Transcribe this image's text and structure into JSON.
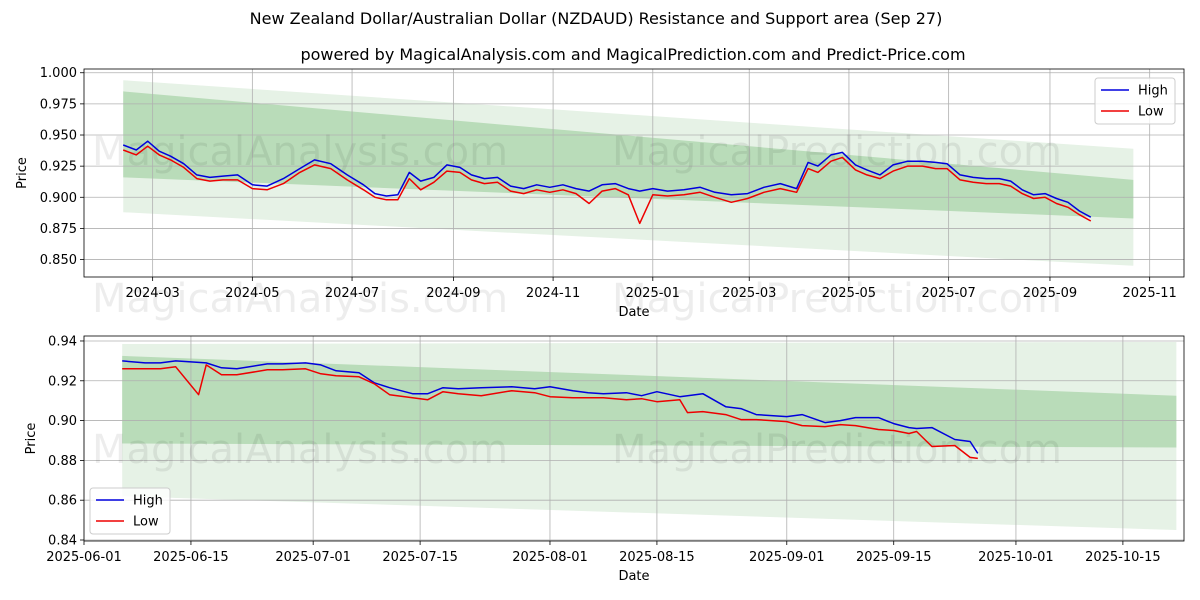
{
  "header": {
    "title": "New Zealand Dollar/Australian Dollar (NZDAUD) Resistance and Support area (Sep 27)",
    "subtitle": "powered by MagicalAnalysis.com and MagicalPrediction.com and Predict-Price.com"
  },
  "watermarks": [
    "MagicalAnalysis.com",
    "MagicalPrediction.com"
  ],
  "colors": {
    "high": "#0000dd",
    "low": "#ee0000",
    "band_outer": "#e6f2e6",
    "band_inner": "#b9dcb9",
    "grid": "#b0b0b0"
  },
  "chart_data": [
    {
      "type": "line",
      "xlabel": "Date",
      "ylabel": "Price",
      "grid": true,
      "legend": "top-right",
      "ylim": [
        0.836,
        1.003
      ],
      "xlim": [
        "2024-01-19",
        "2025-11-22"
      ],
      "x_ticks": [
        "2024-03",
        "2024-05",
        "2024-07",
        "2024-09",
        "2024-11",
        "2025-01",
        "2025-03",
        "2025-05",
        "2025-07",
        "2025-09",
        "2025-11"
      ],
      "y_ticks": [
        "0.850",
        "0.875",
        "0.900",
        "0.925",
        "0.950",
        "0.975",
        "1.000"
      ],
      "series": [
        {
          "name": "High",
          "x": [
            "2024-02-12",
            "2024-02-20",
            "2024-02-27",
            "2024-03-05",
            "2024-03-12",
            "2024-03-20",
            "2024-03-28",
            "2024-04-05",
            "2024-04-13",
            "2024-04-22",
            "2024-05-01",
            "2024-05-10",
            "2024-05-20",
            "2024-05-30",
            "2024-06-08",
            "2024-06-18",
            "2024-06-28",
            "2024-07-08",
            "2024-07-15",
            "2024-07-22",
            "2024-07-29",
            "2024-08-05",
            "2024-08-12",
            "2024-08-20",
            "2024-08-28",
            "2024-09-05",
            "2024-09-12",
            "2024-09-20",
            "2024-09-28",
            "2024-10-06",
            "2024-10-14",
            "2024-10-22",
            "2024-10-30",
            "2024-11-07",
            "2024-11-15",
            "2024-11-23",
            "2024-12-01",
            "2024-12-09",
            "2024-12-17",
            "2024-12-24",
            "2025-01-01",
            "2025-01-10",
            "2025-01-20",
            "2025-01-30",
            "2025-02-08",
            "2025-02-18",
            "2025-02-28",
            "2025-03-10",
            "2025-03-20",
            "2025-03-30",
            "2025-04-06",
            "2025-04-12",
            "2025-04-20",
            "2025-04-27",
            "2025-05-05",
            "2025-05-12",
            "2025-05-20",
            "2025-05-28",
            "2025-06-06",
            "2025-06-15",
            "2025-06-23",
            "2025-06-30",
            "2025-07-08",
            "2025-07-16",
            "2025-07-24",
            "2025-08-01",
            "2025-08-08",
            "2025-08-15",
            "2025-08-22",
            "2025-08-29",
            "2025-09-05",
            "2025-09-12",
            "2025-09-19",
            "2025-09-26"
          ],
          "values": [
            0.942,
            0.938,
            0.945,
            0.937,
            0.933,
            0.927,
            0.918,
            0.916,
            0.917,
            0.918,
            0.91,
            0.909,
            0.915,
            0.923,
            0.93,
            0.927,
            0.918,
            0.91,
            0.903,
            0.901,
            0.902,
            0.92,
            0.913,
            0.916,
            0.926,
            0.924,
            0.918,
            0.915,
            0.916,
            0.909,
            0.907,
            0.91,
            0.908,
            0.91,
            0.907,
            0.905,
            0.91,
            0.911,
            0.907,
            0.905,
            0.907,
            0.905,
            0.906,
            0.908,
            0.904,
            0.902,
            0.903,
            0.908,
            0.911,
            0.907,
            0.928,
            0.925,
            0.934,
            0.936,
            0.926,
            0.922,
            0.918,
            0.926,
            0.929,
            0.929,
            0.928,
            0.927,
            0.918,
            0.916,
            0.915,
            0.915,
            0.913,
            0.906,
            0.902,
            0.903,
            0.899,
            0.896,
            0.889,
            0.884
          ]
        },
        {
          "name": "Low",
          "x": [
            "2024-02-12",
            "2024-02-20",
            "2024-02-27",
            "2024-03-05",
            "2024-03-12",
            "2024-03-20",
            "2024-03-28",
            "2024-04-05",
            "2024-04-13",
            "2024-04-22",
            "2024-05-01",
            "2024-05-10",
            "2024-05-20",
            "2024-05-30",
            "2024-06-08",
            "2024-06-18",
            "2024-06-28",
            "2024-07-08",
            "2024-07-15",
            "2024-07-22",
            "2024-07-29",
            "2024-08-05",
            "2024-08-12",
            "2024-08-20",
            "2024-08-28",
            "2024-09-05",
            "2024-09-12",
            "2024-09-20",
            "2024-09-28",
            "2024-10-06",
            "2024-10-14",
            "2024-10-22",
            "2024-10-30",
            "2024-11-07",
            "2024-11-15",
            "2024-11-23",
            "2024-12-01",
            "2024-12-09",
            "2024-12-17",
            "2024-12-24",
            "2025-01-01",
            "2025-01-10",
            "2025-01-20",
            "2025-01-30",
            "2025-02-08",
            "2025-02-18",
            "2025-02-28",
            "2025-03-10",
            "2025-03-20",
            "2025-03-30",
            "2025-04-06",
            "2025-04-12",
            "2025-04-20",
            "2025-04-27",
            "2025-05-05",
            "2025-05-12",
            "2025-05-20",
            "2025-05-28",
            "2025-06-06",
            "2025-06-15",
            "2025-06-23",
            "2025-06-30",
            "2025-07-08",
            "2025-07-16",
            "2025-07-24",
            "2025-08-01",
            "2025-08-08",
            "2025-08-15",
            "2025-08-22",
            "2025-08-29",
            "2025-09-05",
            "2025-09-12",
            "2025-09-19",
            "2025-09-26"
          ],
          "values": [
            0.938,
            0.934,
            0.941,
            0.934,
            0.93,
            0.924,
            0.915,
            0.913,
            0.914,
            0.914,
            0.907,
            0.906,
            0.911,
            0.92,
            0.926,
            0.923,
            0.914,
            0.906,
            0.9,
            0.898,
            0.898,
            0.915,
            0.906,
            0.912,
            0.921,
            0.92,
            0.914,
            0.911,
            0.912,
            0.905,
            0.903,
            0.906,
            0.904,
            0.906,
            0.903,
            0.895,
            0.905,
            0.907,
            0.902,
            0.879,
            0.902,
            0.901,
            0.902,
            0.904,
            0.9,
            0.896,
            0.899,
            0.904,
            0.907,
            0.904,
            0.923,
            0.92,
            0.929,
            0.932,
            0.922,
            0.918,
            0.915,
            0.921,
            0.925,
            0.925,
            0.923,
            0.923,
            0.914,
            0.912,
            0.911,
            0.911,
            0.909,
            0.903,
            0.899,
            0.9,
            0.895,
            0.892,
            0.886,
            0.881
          ]
        }
      ],
      "bands": [
        {
          "name": "outer",
          "x": [
            "2024-02-12",
            "2025-10-22"
          ],
          "upper": [
            0.994,
            0.939
          ],
          "lower": [
            0.888,
            0.845
          ]
        },
        {
          "name": "inner",
          "x": [
            "2024-02-12",
            "2025-10-22"
          ],
          "upper": [
            0.985,
            0.914
          ],
          "lower": [
            0.916,
            0.883
          ]
        }
      ]
    },
    {
      "type": "line",
      "xlabel": "Date",
      "ylabel": "Price",
      "grid": true,
      "legend": "bottom-left",
      "ylim": [
        0.8395,
        0.9425
      ],
      "xlim": [
        "2025-06-01",
        "2025-10-23"
      ],
      "x_ticks": [
        "2025-06-01",
        "2025-06-15",
        "2025-07-01",
        "2025-07-15",
        "2025-08-01",
        "2025-08-15",
        "2025-09-01",
        "2025-09-15",
        "2025-10-01",
        "2025-10-15"
      ],
      "y_ticks": [
        "0.84",
        "0.86",
        "0.88",
        "0.90",
        "0.92",
        "0.94"
      ],
      "series": [
        {
          "name": "High",
          "x": [
            "2025-06-06",
            "2025-06-09",
            "2025-06-11",
            "2025-06-13",
            "2025-06-17",
            "2025-06-19",
            "2025-06-21",
            "2025-06-25",
            "2025-06-27",
            "2025-06-30",
            "2025-07-02",
            "2025-07-04",
            "2025-07-07",
            "2025-07-09",
            "2025-07-11",
            "2025-07-14",
            "2025-07-16",
            "2025-07-18",
            "2025-07-20",
            "2025-07-23",
            "2025-07-27",
            "2025-07-30",
            "2025-08-01",
            "2025-08-04",
            "2025-08-06",
            "2025-08-08",
            "2025-08-11",
            "2025-08-13",
            "2025-08-15",
            "2025-08-18",
            "2025-08-19",
            "2025-08-21",
            "2025-08-24",
            "2025-08-26",
            "2025-08-28",
            "2025-09-01",
            "2025-09-03",
            "2025-09-06",
            "2025-09-08",
            "2025-09-10",
            "2025-09-13",
            "2025-09-15",
            "2025-09-17",
            "2025-09-18",
            "2025-09-20",
            "2025-09-23",
            "2025-09-25",
            "2025-09-26"
          ],
          "values": [
            0.93,
            0.929,
            0.929,
            0.93,
            0.929,
            0.9265,
            0.926,
            0.9285,
            0.9285,
            0.929,
            0.928,
            0.925,
            0.924,
            0.919,
            0.9165,
            0.9135,
            0.9135,
            0.9165,
            0.916,
            0.9165,
            0.917,
            0.916,
            0.917,
            0.915,
            0.914,
            0.9135,
            0.914,
            0.9125,
            0.9145,
            0.912,
            0.9125,
            0.9135,
            0.907,
            0.906,
            0.903,
            0.902,
            0.903,
            0.899,
            0.9,
            0.9015,
            0.9015,
            0.8985,
            0.8965,
            0.896,
            0.8965,
            0.8905,
            0.8895,
            0.8835
          ]
        },
        {
          "name": "Low",
          "x": [
            "2025-06-06",
            "2025-06-09",
            "2025-06-11",
            "2025-06-13",
            "2025-06-16",
            "2025-06-17",
            "2025-06-19",
            "2025-06-21",
            "2025-06-25",
            "2025-06-27",
            "2025-06-30",
            "2025-07-02",
            "2025-07-04",
            "2025-07-07",
            "2025-07-09",
            "2025-07-11",
            "2025-07-14",
            "2025-07-16",
            "2025-07-18",
            "2025-07-20",
            "2025-07-23",
            "2025-07-27",
            "2025-07-30",
            "2025-08-01",
            "2025-08-04",
            "2025-08-06",
            "2025-08-08",
            "2025-08-11",
            "2025-08-13",
            "2025-08-15",
            "2025-08-18",
            "2025-08-19",
            "2025-08-21",
            "2025-08-24",
            "2025-08-26",
            "2025-08-28",
            "2025-09-01",
            "2025-09-03",
            "2025-09-06",
            "2025-09-08",
            "2025-09-10",
            "2025-09-13",
            "2025-09-15",
            "2025-09-17",
            "2025-09-18",
            "2025-09-20",
            "2025-09-23",
            "2025-09-25",
            "2025-09-26"
          ],
          "values": [
            0.926,
            0.926,
            0.926,
            0.927,
            0.913,
            0.928,
            0.923,
            0.923,
            0.9255,
            0.9255,
            0.926,
            0.9235,
            0.9225,
            0.922,
            0.9185,
            0.913,
            0.9115,
            0.9105,
            0.9145,
            0.9135,
            0.9125,
            0.915,
            0.914,
            0.912,
            0.9115,
            0.9115,
            0.9115,
            0.9105,
            0.911,
            0.9095,
            0.9105,
            0.904,
            0.9045,
            0.903,
            0.9005,
            0.9005,
            0.8995,
            0.8975,
            0.897,
            0.898,
            0.8975,
            0.8955,
            0.895,
            0.8935,
            0.8945,
            0.887,
            0.8875,
            0.8815,
            0.881
          ]
        }
      ],
      "bands": [
        {
          "name": "outer",
          "x": [
            "2025-06-06",
            "2025-10-22"
          ],
          "upper": [
            0.9385,
            0.9395
          ],
          "lower": [
            0.862,
            0.845
          ]
        },
        {
          "name": "inner",
          "x": [
            "2025-06-06",
            "2025-10-22"
          ],
          "upper": [
            0.9325,
            0.9125
          ],
          "lower": [
            0.8885,
            0.8865
          ]
        }
      ]
    }
  ]
}
